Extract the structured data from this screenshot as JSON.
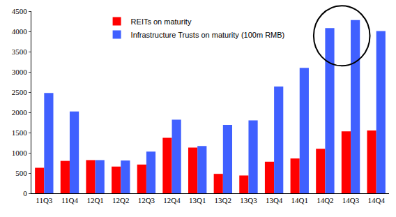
{
  "chart_data": {
    "type": "bar",
    "categories": [
      "11Q3",
      "11Q4",
      "12Q1",
      "12Q2",
      "12Q3",
      "12Q4",
      "13Q1",
      "13Q2",
      "13Q3",
      "13Q4",
      "14Q1",
      "14Q2",
      "14Q3",
      "14Q4"
    ],
    "series": [
      {
        "name": "REITs on maturity",
        "color": "#ff0000",
        "values": [
          630,
          800,
          820,
          660,
          710,
          1370,
          1130,
          480,
          440,
          780,
          860,
          1100,
          1530,
          1550
        ]
      },
      {
        "name": "Infrastructure Trusts on maturity (100m RMB)",
        "color": "#4060ff",
        "values": [
          2480,
          2020,
          820,
          810,
          1030,
          1820,
          1170,
          1690,
          1800,
          2640,
          3100,
          4080,
          4280,
          4010
        ]
      }
    ],
    "ylim": [
      0,
      4500
    ],
    "yticks": [
      0,
      500,
      1000,
      1500,
      2000,
      2500,
      3000,
      3500,
      4000,
      4500
    ],
    "grid": false,
    "legend": "top"
  }
}
